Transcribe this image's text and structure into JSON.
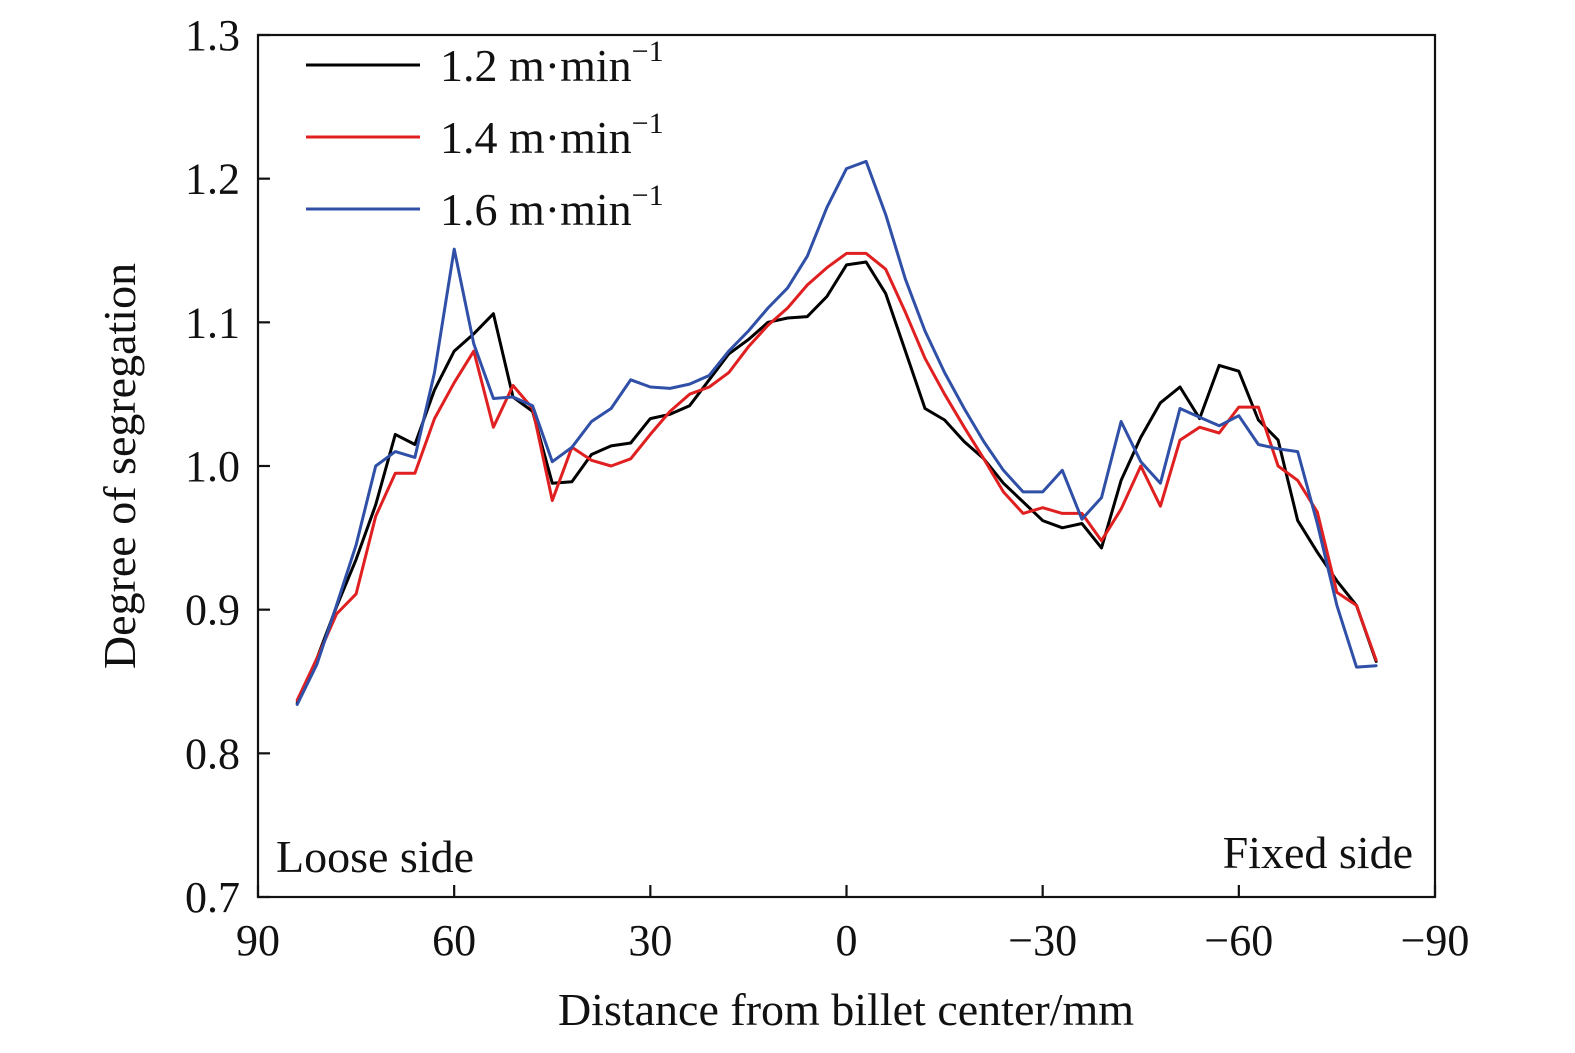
{
  "chart_data": {
    "type": "line",
    "title": "",
    "xlabel": "Distance from billet center/mm",
    "ylabel": "Degree of segregation",
    "xlim": [
      90,
      -90
    ],
    "ylim": [
      0.7,
      1.3
    ],
    "x_ticks": [
      90,
      60,
      30,
      0,
      -30,
      -60,
      -90
    ],
    "x_tick_labels": [
      "90",
      "60",
      "30",
      "0",
      "−30",
      "−60",
      "−90"
    ],
    "y_ticks": [
      0.7,
      0.8,
      0.9,
      1.0,
      1.1,
      1.2,
      1.3
    ],
    "y_tick_labels": [
      "0.7",
      "0.8",
      "0.9",
      "1.0",
      "1.1",
      "1.2",
      "1.3"
    ],
    "grid": false,
    "legend_position": "top-left",
    "annotations": {
      "left": "Loose side",
      "right": "Fixed side"
    },
    "x": [
      84,
      81,
      78,
      75,
      72,
      69,
      66,
      63,
      60,
      57,
      54,
      51,
      48,
      45,
      42,
      39,
      36,
      33,
      30,
      27,
      24,
      21,
      18,
      15,
      12,
      9,
      6,
      3,
      0,
      -3,
      -6,
      -9,
      -12,
      -15,
      -18,
      -21,
      -24,
      -27,
      -30,
      -33,
      -36,
      -39,
      -42,
      -45,
      -48,
      -51,
      -54,
      -57,
      -60,
      -63,
      -66,
      -69,
      -72,
      -75,
      -78,
      -81
    ],
    "series": [
      {
        "name": "1.2 m·min",
        "name_sup": "−1",
        "color": "#000000",
        "values": [
          0.835,
          0.866,
          0.902,
          0.935,
          0.973,
          1.022,
          1.015,
          1.053,
          1.08,
          1.092,
          1.106,
          1.048,
          1.038,
          0.988,
          0.989,
          1.008,
          1.014,
          1.016,
          1.033,
          1.036,
          1.042,
          1.06,
          1.078,
          1.088,
          1.1,
          1.103,
          1.104,
          1.118,
          1.14,
          1.142,
          1.12,
          1.08,
          1.04,
          1.032,
          1.017,
          1.005,
          0.988,
          0.975,
          0.962,
          0.957,
          0.96,
          0.943,
          0.99,
          1.02,
          1.044,
          1.055,
          1.033,
          1.07,
          1.066,
          1.032,
          1.018,
          0.962,
          0.94,
          0.92,
          0.903,
          0.864
        ]
      },
      {
        "name": "1.4 m·min",
        "name_sup": "−1",
        "color": "#e02020",
        "values": [
          0.837,
          0.866,
          0.897,
          0.911,
          0.965,
          0.995,
          0.995,
          1.033,
          1.058,
          1.08,
          1.027,
          1.056,
          1.04,
          0.976,
          1.013,
          1.004,
          1.0,
          1.005,
          1.022,
          1.038,
          1.05,
          1.055,
          1.065,
          1.083,
          1.098,
          1.11,
          1.126,
          1.138,
          1.148,
          1.148,
          1.137,
          1.107,
          1.075,
          1.05,
          1.027,
          1.005,
          0.982,
          0.967,
          0.971,
          0.967,
          0.967,
          0.948,
          0.97,
          1.0,
          0.972,
          1.018,
          1.027,
          1.023,
          1.041,
          1.041,
          1.0,
          0.99,
          0.968,
          0.912,
          0.903,
          0.865
        ]
      },
      {
        "name": "1.6 m·min",
        "name_sup": "−1",
        "color": "#3050a8",
        "values": [
          0.834,
          0.862,
          0.903,
          0.945,
          1.0,
          1.01,
          1.006,
          1.065,
          1.151,
          1.085,
          1.047,
          1.048,
          1.042,
          1.003,
          1.013,
          1.031,
          1.04,
          1.06,
          1.055,
          1.054,
          1.057,
          1.063,
          1.08,
          1.094,
          1.11,
          1.124,
          1.146,
          1.18,
          1.207,
          1.212,
          1.175,
          1.13,
          1.094,
          1.065,
          1.04,
          1.017,
          0.997,
          0.982,
          0.982,
          0.997,
          0.963,
          0.978,
          1.031,
          1.003,
          0.988,
          1.04,
          1.034,
          1.028,
          1.035,
          1.015,
          1.012,
          1.01,
          0.96,
          0.903,
          0.86,
          0.861
        ]
      }
    ]
  }
}
